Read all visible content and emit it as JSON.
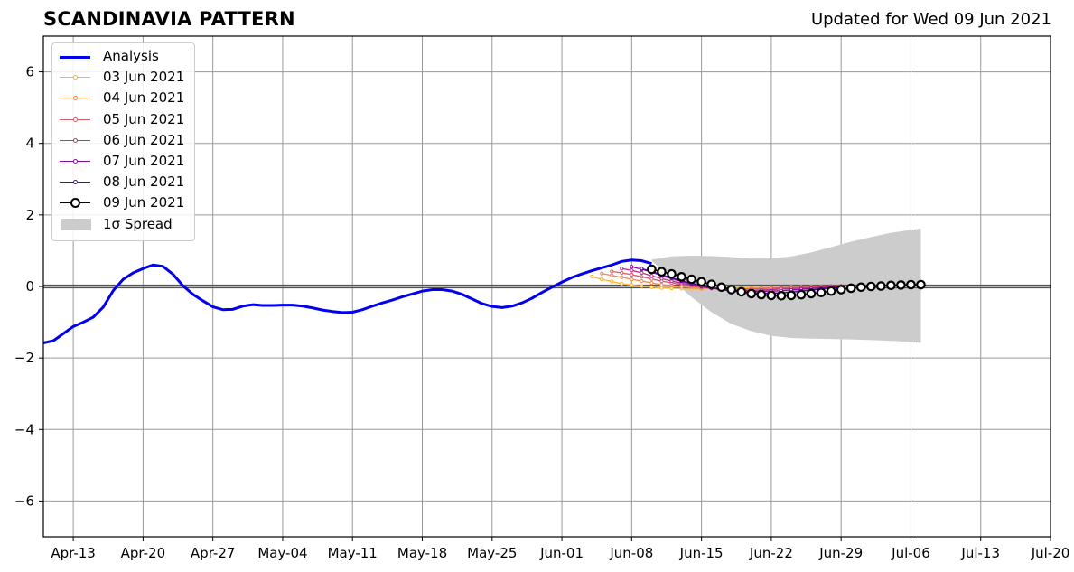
{
  "header": {
    "title": "SCANDINAVIA PATTERN",
    "subtitle": "Updated for Wed 09 Jun 2021"
  },
  "legend": {
    "placement": "top-left",
    "items": [
      {
        "label": "Analysis",
        "color": "#0000ee",
        "kind": "thick-line"
      },
      {
        "label": "03 Jun 2021",
        "color": "#fdb42f",
        "kind": "dot-line"
      },
      {
        "label": "04 Jun 2021",
        "color": "#f48849",
        "kind": "dot-line"
      },
      {
        "label": "05 Jun 2021",
        "color": "#db5c68",
        "kind": "dot-line"
      },
      {
        "label": "06 Jun 2021",
        "color": "#b83289",
        "kind": "dot-line"
      },
      {
        "label": "07 Jun 2021",
        "color": "#8b0aa5",
        "kind": "dot-line"
      },
      {
        "label": "08 Jun 2021",
        "color": "#5302a3",
        "kind": "dot-line"
      },
      {
        "label": "09 Jun 2021",
        "color": "#000000",
        "kind": "big-dot-line"
      },
      {
        "label": "1σ Spread",
        "color": "#cccccc",
        "kind": "patch"
      }
    ]
  },
  "chart_data": {
    "type": "line",
    "title": "SCANDINAVIA PATTERN",
    "subtitle": "Updated for Wed 09 Jun 2021",
    "xlim": [
      "2021-04-10",
      "2021-07-20"
    ],
    "ylim": [
      -7,
      7
    ],
    "grid": true,
    "legend_placement": "top-left",
    "x_ticks": [
      "2021-04-13",
      "2021-04-20",
      "2021-04-27",
      "2021-05-04",
      "2021-05-11",
      "2021-05-18",
      "2021-05-25",
      "2021-06-01",
      "2021-06-08",
      "2021-06-15",
      "2021-06-22",
      "2021-06-29",
      "2021-07-06",
      "2021-07-13",
      "2021-07-20"
    ],
    "x_tick_labels": [
      "Apr-13",
      "Apr-20",
      "Apr-27",
      "May-04",
      "May-11",
      "May-18",
      "May-25",
      "Jun-01",
      "Jun-08",
      "Jun-15",
      "Jun-22",
      "Jun-29",
      "Jul-06",
      "Jul-13",
      "Jul-20"
    ],
    "y_ticks": [
      -6,
      -4,
      -2,
      0,
      2,
      4,
      6
    ],
    "y_tick_labels": [
      "−6",
      "−4",
      "−2",
      "0",
      "2",
      "4",
      "6"
    ],
    "zero_line": true,
    "analysis": {
      "name": "Analysis",
      "color": "#0000ee",
      "points": [
        [
          "2021-04-10",
          -1.58
        ],
        [
          "2021-04-11",
          -1.52
        ],
        [
          "2021-04-12",
          -1.32
        ],
        [
          "2021-04-13",
          -1.12
        ],
        [
          "2021-04-14",
          -1.0
        ],
        [
          "2021-04-15",
          -0.86
        ],
        [
          "2021-04-16",
          -0.58
        ],
        [
          "2021-04-17",
          -0.12
        ],
        [
          "2021-04-18",
          0.2
        ],
        [
          "2021-04-19",
          0.38
        ],
        [
          "2021-04-20",
          0.5
        ],
        [
          "2021-04-21",
          0.6
        ],
        [
          "2021-04-22",
          0.56
        ],
        [
          "2021-04-23",
          0.34
        ],
        [
          "2021-04-24",
          0.02
        ],
        [
          "2021-04-25",
          -0.22
        ],
        [
          "2021-04-26",
          -0.4
        ],
        [
          "2021-04-27",
          -0.57
        ],
        [
          "2021-04-28",
          -0.65
        ],
        [
          "2021-04-29",
          -0.64
        ],
        [
          "2021-04-30",
          -0.55
        ],
        [
          "2021-05-01",
          -0.51
        ],
        [
          "2021-05-02",
          -0.53
        ],
        [
          "2021-05-03",
          -0.53
        ],
        [
          "2021-05-04",
          -0.52
        ],
        [
          "2021-05-05",
          -0.52
        ],
        [
          "2021-05-06",
          -0.55
        ],
        [
          "2021-05-07",
          -0.6
        ],
        [
          "2021-05-08",
          -0.66
        ],
        [
          "2021-05-09",
          -0.7
        ],
        [
          "2021-05-10",
          -0.73
        ],
        [
          "2021-05-11",
          -0.72
        ],
        [
          "2021-05-12",
          -0.65
        ],
        [
          "2021-05-13",
          -0.55
        ],
        [
          "2021-05-14",
          -0.46
        ],
        [
          "2021-05-15",
          -0.38
        ],
        [
          "2021-05-16",
          -0.29
        ],
        [
          "2021-05-17",
          -0.21
        ],
        [
          "2021-05-18",
          -0.13
        ],
        [
          "2021-05-19",
          -0.09
        ],
        [
          "2021-05-20",
          -0.09
        ],
        [
          "2021-05-21",
          -0.13
        ],
        [
          "2021-05-22",
          -0.22
        ],
        [
          "2021-05-23",
          -0.35
        ],
        [
          "2021-05-24",
          -0.48
        ],
        [
          "2021-05-25",
          -0.56
        ],
        [
          "2021-05-26",
          -0.59
        ],
        [
          "2021-05-27",
          -0.55
        ],
        [
          "2021-05-28",
          -0.46
        ],
        [
          "2021-05-29",
          -0.33
        ],
        [
          "2021-05-30",
          -0.17
        ],
        [
          "2021-05-31",
          -0.02
        ],
        [
          "2021-06-01",
          0.12
        ],
        [
          "2021-06-02",
          0.25
        ],
        [
          "2021-06-03",
          0.35
        ],
        [
          "2021-06-04",
          0.44
        ],
        [
          "2021-06-05",
          0.52
        ],
        [
          "2021-06-06",
          0.6
        ],
        [
          "2021-06-07",
          0.7
        ],
        [
          "2021-06-08",
          0.74
        ],
        [
          "2021-06-09",
          0.72
        ],
        [
          "2021-06-10",
          0.64
        ]
      ]
    },
    "spread": {
      "name": "1σ Spread",
      "color": "#cccccc",
      "x": [
        "2021-06-10",
        "2021-06-12",
        "2021-06-14",
        "2021-06-16",
        "2021-06-18",
        "2021-06-20",
        "2021-06-22",
        "2021-06-24",
        "2021-06-26",
        "2021-06-28",
        "2021-06-30",
        "2021-07-02",
        "2021-07-04",
        "2021-07-06",
        "2021-07-07"
      ],
      "upper": [
        0.75,
        0.84,
        0.86,
        0.85,
        0.82,
        0.78,
        0.78,
        0.84,
        0.95,
        1.1,
        1.25,
        1.38,
        1.5,
        1.58,
        1.62
      ],
      "lower": [
        0.72,
        0.2,
        -0.3,
        -0.72,
        -1.05,
        -1.25,
        -1.38,
        -1.44,
        -1.46,
        -1.47,
        -1.48,
        -1.5,
        -1.52,
        -1.55,
        -1.58
      ]
    },
    "forecasts": [
      {
        "name": "03 Jun 2021",
        "color": "#fdb42f",
        "start": "2021-06-04",
        "values": [
          0.28,
          0.2,
          0.14,
          0.08,
          0.04,
          0.01,
          -0.02,
          -0.04,
          -0.05,
          -0.06,
          -0.07,
          -0.07,
          -0.06,
          -0.05,
          -0.05,
          -0.04,
          -0.03,
          -0.03,
          -0.02,
          -0.02,
          -0.01,
          -0.01,
          0,
          0,
          0.01,
          0.01
        ]
      },
      {
        "name": "04 Jun 2021",
        "color": "#f48849",
        "start": "2021-06-05",
        "values": [
          0.36,
          0.31,
          0.26,
          0.2,
          0.15,
          0.1,
          0.05,
          0.02,
          -0.01,
          -0.03,
          -0.05,
          -0.06,
          -0.07,
          -0.07,
          -0.07,
          -0.06,
          -0.05,
          -0.04,
          -0.03,
          -0.02,
          -0.01,
          0,
          0.01,
          0.01,
          0.02
        ]
      },
      {
        "name": "05 Jun 2021",
        "color": "#db5c68",
        "start": "2021-06-06",
        "values": [
          0.42,
          0.38,
          0.33,
          0.27,
          0.21,
          0.15,
          0.1,
          0.05,
          0.01,
          -0.02,
          -0.05,
          -0.07,
          -0.08,
          -0.08,
          -0.07,
          -0.06,
          -0.05,
          -0.04,
          -0.03,
          -0.02,
          -0.01,
          0,
          0.01,
          0.02
        ]
      },
      {
        "name": "06 Jun 2021",
        "color": "#b83289",
        "start": "2021-06-07",
        "values": [
          0.5,
          0.45,
          0.38,
          0.3,
          0.22,
          0.15,
          0.09,
          0.04,
          -0.01,
          -0.05,
          -0.08,
          -0.1,
          -0.11,
          -0.11,
          -0.1,
          -0.09,
          -0.07,
          -0.06,
          -0.05,
          -0.04,
          -0.02,
          -0.01,
          0
        ]
      },
      {
        "name": "07 Jun 2021",
        "color": "#8b0aa5",
        "start": "2021-06-08",
        "values": [
          0.55,
          0.48,
          0.4,
          0.3,
          0.22,
          0.14,
          0.07,
          0.01,
          -0.04,
          -0.08,
          -0.11,
          -0.13,
          -0.14,
          -0.14,
          -0.13,
          -0.12,
          -0.1,
          -0.08,
          -0.06,
          -0.04,
          -0.02,
          -0.01
        ]
      },
      {
        "name": "08 Jun 2021",
        "color": "#5302a3",
        "start": "2021-06-09",
        "values": [
          0.5,
          0.42,
          0.33,
          0.24,
          0.16,
          0.09,
          0.02,
          -0.04,
          -0.09,
          -0.13,
          -0.16,
          -0.18,
          -0.19,
          -0.19,
          -0.18,
          -0.16,
          -0.13,
          -0.1,
          -0.07,
          -0.04,
          -0.02
        ]
      },
      {
        "name": "09 Jun 2021",
        "color": "#000000",
        "start": "2021-06-10",
        "values": [
          0.48,
          0.41,
          0.35,
          0.27,
          0.2,
          0.13,
          0.06,
          -0.02,
          -0.09,
          -0.15,
          -0.2,
          -0.23,
          -0.25,
          -0.26,
          -0.25,
          -0.23,
          -0.2,
          -0.17,
          -0.13,
          -0.09,
          -0.05,
          -0.02,
          0.0,
          0.01,
          0.03,
          0.04,
          0.05,
          0.05
        ]
      }
    ]
  }
}
